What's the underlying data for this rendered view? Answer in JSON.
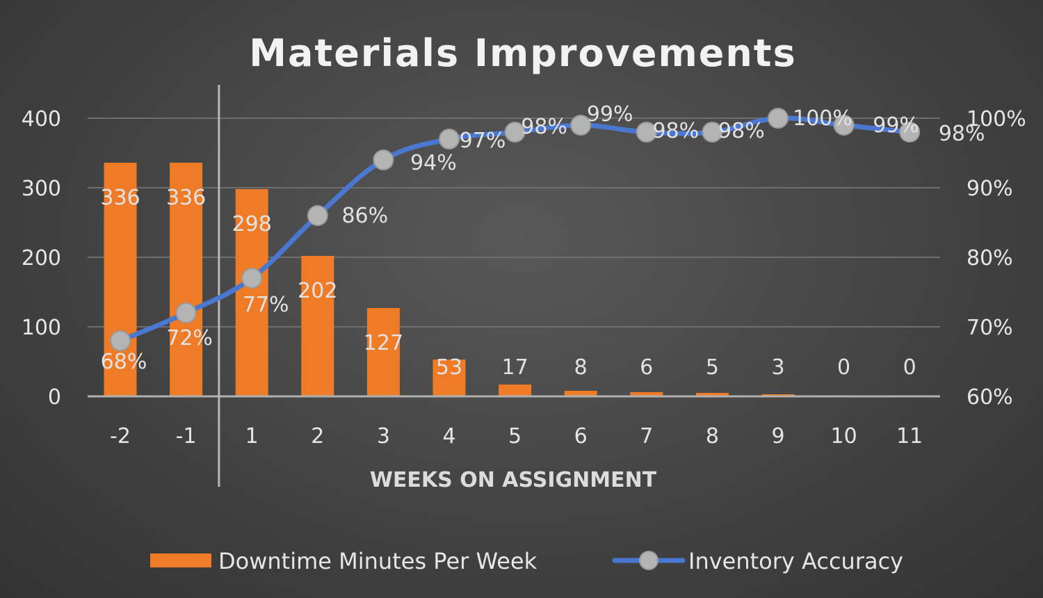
{
  "chart_data": {
    "type": "bar",
    "title": "Materials Improvements",
    "xlabel": "WEEKS ON ASSIGNMENT",
    "ylabel": "",
    "categories": [
      "-2",
      "-1",
      "1",
      "2",
      "3",
      "4",
      "5",
      "6",
      "7",
      "8",
      "9",
      "10",
      "11"
    ],
    "ylim": [
      0,
      400
    ],
    "yticks": [
      "0",
      "100",
      "200",
      "300",
      "400"
    ],
    "y2lim": [
      60,
      100
    ],
    "y2ticks": [
      "60%",
      "70%",
      "80%",
      "90%",
      "100%"
    ],
    "series": [
      {
        "name": "Downtime Minutes Per Week",
        "type": "bar",
        "axis": "left",
        "color": "#f07b27",
        "values": [
          336,
          336,
          298,
          202,
          127,
          53,
          17,
          8,
          6,
          5,
          3,
          0,
          0
        ],
        "labels": [
          "336",
          "336",
          "298",
          "202",
          "127",
          "53",
          "17",
          "8",
          "6",
          "5",
          "3",
          "0",
          "0"
        ]
      },
      {
        "name": "Inventory Accuracy",
        "type": "line",
        "axis": "right",
        "color": "#4a78d0",
        "marker_color": "#b4b4b4",
        "values": [
          68,
          72,
          77,
          86,
          94,
          97,
          98,
          99,
          98,
          98,
          100,
          99,
          98
        ],
        "labels": [
          "68%",
          "72%",
          "77%",
          "86%",
          "94%",
          "97%",
          "98%",
          "99%",
          "98%",
          "98%",
          "100%",
          "99%",
          "98%"
        ]
      }
    ],
    "grid": true,
    "legend": "bottom",
    "divider_after_category": "-1"
  }
}
